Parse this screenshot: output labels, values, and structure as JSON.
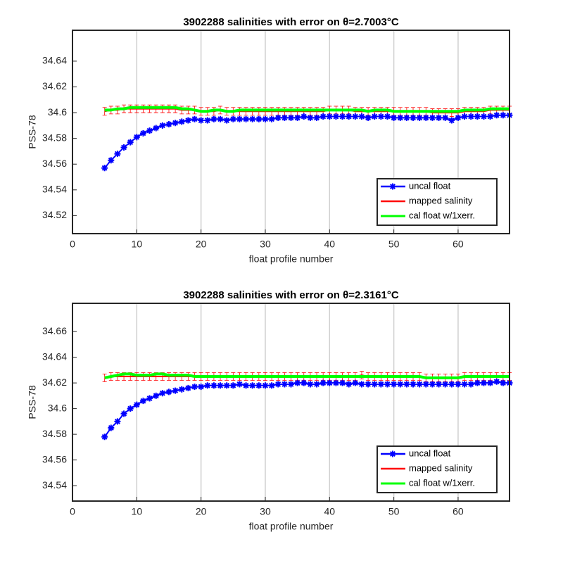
{
  "chart_data": [
    {
      "type": "line",
      "title": "3902288 salinities with error on θ=2.7003°C",
      "xlabel": "float profile number",
      "ylabel": "PSS-78",
      "xlim": [
        0,
        68
      ],
      "ylim": [
        34.506,
        34.664
      ],
      "xticks": [
        0,
        10,
        20,
        30,
        40,
        50,
        60
      ],
      "yticks": [
        34.52,
        34.54,
        34.56,
        34.58,
        34.6,
        34.62,
        34.64
      ],
      "grid": "x",
      "legend": "lower right",
      "x": [
        5,
        6,
        7,
        8,
        9,
        10,
        11,
        12,
        13,
        14,
        15,
        16,
        17,
        18,
        19,
        20,
        21,
        22,
        23,
        24,
        25,
        26,
        27,
        28,
        29,
        30,
        31,
        32,
        33,
        34,
        35,
        36,
        37,
        38,
        39,
        40,
        41,
        42,
        43,
        44,
        45,
        46,
        47,
        48,
        49,
        50,
        51,
        52,
        53,
        54,
        55,
        56,
        57,
        58,
        59,
        60,
        61,
        62,
        63,
        64,
        65,
        66,
        67,
        68
      ],
      "series": [
        {
          "name": "uncal float",
          "color": "#0000ff",
          "values": [
            34.557,
            34.563,
            34.568,
            34.573,
            34.577,
            34.581,
            34.584,
            34.586,
            34.588,
            34.59,
            34.591,
            34.592,
            34.593,
            34.594,
            34.595,
            34.594,
            34.594,
            34.595,
            34.595,
            34.594,
            34.595,
            34.595,
            34.595,
            34.595,
            34.595,
            34.595,
            34.595,
            34.596,
            34.596,
            34.596,
            34.596,
            34.597,
            34.596,
            34.596,
            34.597,
            34.597,
            34.597,
            34.597,
            34.597,
            34.597,
            34.597,
            34.596,
            34.597,
            34.597,
            34.597,
            34.596,
            34.596,
            34.596,
            34.596,
            34.596,
            34.596,
            34.596,
            34.596,
            34.596,
            34.594,
            34.596,
            34.597,
            34.597,
            34.597,
            34.597,
            34.597,
            34.598,
            34.598,
            34.598
          ]
        },
        {
          "name": "mapped salinity",
          "color": "#ff0000",
          "error": 0.003,
          "values": [
            34.601,
            34.602,
            34.602,
            34.603,
            34.603,
            34.603,
            34.603,
            34.603,
            34.603,
            34.603,
            34.603,
            34.603,
            34.602,
            34.602,
            34.602,
            34.601,
            34.601,
            34.601,
            34.602,
            34.601,
            34.601,
            34.601,
            34.601,
            34.601,
            34.601,
            34.601,
            34.601,
            34.601,
            34.601,
            34.601,
            34.601,
            34.601,
            34.601,
            34.601,
            34.601,
            34.602,
            34.602,
            34.602,
            34.602,
            34.601,
            34.601,
            34.601,
            34.601,
            34.601,
            34.601,
            34.601,
            34.601,
            34.601,
            34.601,
            34.601,
            34.601,
            34.6,
            34.6,
            34.6,
            34.6,
            34.6,
            34.601,
            34.601,
            34.601,
            34.601,
            34.602,
            34.602,
            34.602,
            34.602
          ]
        },
        {
          "name": "cal float w/1xerr.",
          "color": "#00ff00",
          "values": [
            34.602,
            34.602,
            34.603,
            34.603,
            34.604,
            34.604,
            34.604,
            34.604,
            34.604,
            34.604,
            34.604,
            34.604,
            34.603,
            34.603,
            34.602,
            34.601,
            34.601,
            34.602,
            34.602,
            34.601,
            34.601,
            34.602,
            34.602,
            34.602,
            34.602,
            34.602,
            34.602,
            34.602,
            34.602,
            34.602,
            34.602,
            34.602,
            34.602,
            34.602,
            34.602,
            34.602,
            34.602,
            34.602,
            34.602,
            34.602,
            34.602,
            34.601,
            34.602,
            34.602,
            34.602,
            34.601,
            34.601,
            34.601,
            34.601,
            34.601,
            34.601,
            34.601,
            34.601,
            34.601,
            34.601,
            34.601,
            34.602,
            34.602,
            34.602,
            34.602,
            34.603,
            34.603,
            34.603,
            34.603
          ]
        }
      ]
    },
    {
      "type": "line",
      "title": "3902288 salinities with error on θ=2.3161°C",
      "xlabel": "float profile number",
      "ylabel": "PSS-78",
      "xlim": [
        0,
        68
      ],
      "ylim": [
        34.528,
        34.682
      ],
      "xticks": [
        0,
        10,
        20,
        30,
        40,
        50,
        60
      ],
      "yticks": [
        34.54,
        34.56,
        34.58,
        34.6,
        34.62,
        34.64,
        34.66
      ],
      "grid": "x",
      "legend": "lower right",
      "x": [
        5,
        6,
        7,
        8,
        9,
        10,
        11,
        12,
        13,
        14,
        15,
        16,
        17,
        18,
        19,
        20,
        21,
        22,
        23,
        24,
        25,
        26,
        27,
        28,
        29,
        30,
        31,
        32,
        33,
        34,
        35,
        36,
        37,
        38,
        39,
        40,
        41,
        42,
        43,
        44,
        45,
        46,
        47,
        48,
        49,
        50,
        51,
        52,
        53,
        54,
        55,
        56,
        57,
        58,
        59,
        60,
        61,
        62,
        63,
        64,
        65,
        66,
        67,
        68
      ],
      "series": [
        {
          "name": "uncal float",
          "color": "#0000ff",
          "values": [
            34.578,
            34.585,
            34.59,
            34.596,
            34.6,
            34.603,
            34.606,
            34.608,
            34.61,
            34.612,
            34.613,
            34.614,
            34.615,
            34.616,
            34.617,
            34.617,
            34.618,
            34.618,
            34.618,
            34.618,
            34.618,
            34.619,
            34.618,
            34.618,
            34.618,
            34.618,
            34.618,
            34.619,
            34.619,
            34.619,
            34.62,
            34.62,
            34.619,
            34.619,
            34.62,
            34.62,
            34.62,
            34.62,
            34.619,
            34.62,
            34.619,
            34.619,
            34.619,
            34.619,
            34.619,
            34.619,
            34.619,
            34.619,
            34.619,
            34.619,
            34.619,
            34.619,
            34.619,
            34.619,
            34.619,
            34.619,
            34.619,
            34.619,
            34.62,
            34.62,
            34.62,
            34.621,
            34.62,
            34.62
          ]
        },
        {
          "name": "mapped salinity",
          "color": "#ff0000",
          "error": 0.003,
          "values": [
            34.624,
            34.625,
            34.625,
            34.625,
            34.625,
            34.625,
            34.625,
            34.625,
            34.625,
            34.625,
            34.625,
            34.625,
            34.625,
            34.625,
            34.625,
            34.625,
            34.625,
            34.625,
            34.625,
            34.625,
            34.625,
            34.625,
            34.625,
            34.625,
            34.625,
            34.625,
            34.625,
            34.625,
            34.625,
            34.625,
            34.625,
            34.625,
            34.625,
            34.625,
            34.625,
            34.625,
            34.625,
            34.625,
            34.625,
            34.625,
            34.626,
            34.625,
            34.625,
            34.625,
            34.625,
            34.625,
            34.625,
            34.625,
            34.625,
            34.625,
            34.624,
            34.624,
            34.624,
            34.624,
            34.624,
            34.624,
            34.625,
            34.625,
            34.625,
            34.625,
            34.625,
            34.625,
            34.625,
            34.625
          ]
        },
        {
          "name": "cal float w/1xerr.",
          "color": "#00ff00",
          "values": [
            34.624,
            34.625,
            34.626,
            34.627,
            34.627,
            34.626,
            34.626,
            34.626,
            34.627,
            34.627,
            34.626,
            34.626,
            34.626,
            34.626,
            34.625,
            34.625,
            34.625,
            34.625,
            34.625,
            34.625,
            34.625,
            34.625,
            34.625,
            34.625,
            34.625,
            34.625,
            34.625,
            34.625,
            34.625,
            34.625,
            34.625,
            34.625,
            34.625,
            34.625,
            34.625,
            34.625,
            34.625,
            34.625,
            34.625,
            34.625,
            34.625,
            34.625,
            34.625,
            34.625,
            34.625,
            34.625,
            34.625,
            34.625,
            34.625,
            34.625,
            34.624,
            34.624,
            34.624,
            34.624,
            34.624,
            34.624,
            34.625,
            34.625,
            34.625,
            34.625,
            34.625,
            34.625,
            34.625,
            34.625
          ]
        }
      ]
    }
  ]
}
